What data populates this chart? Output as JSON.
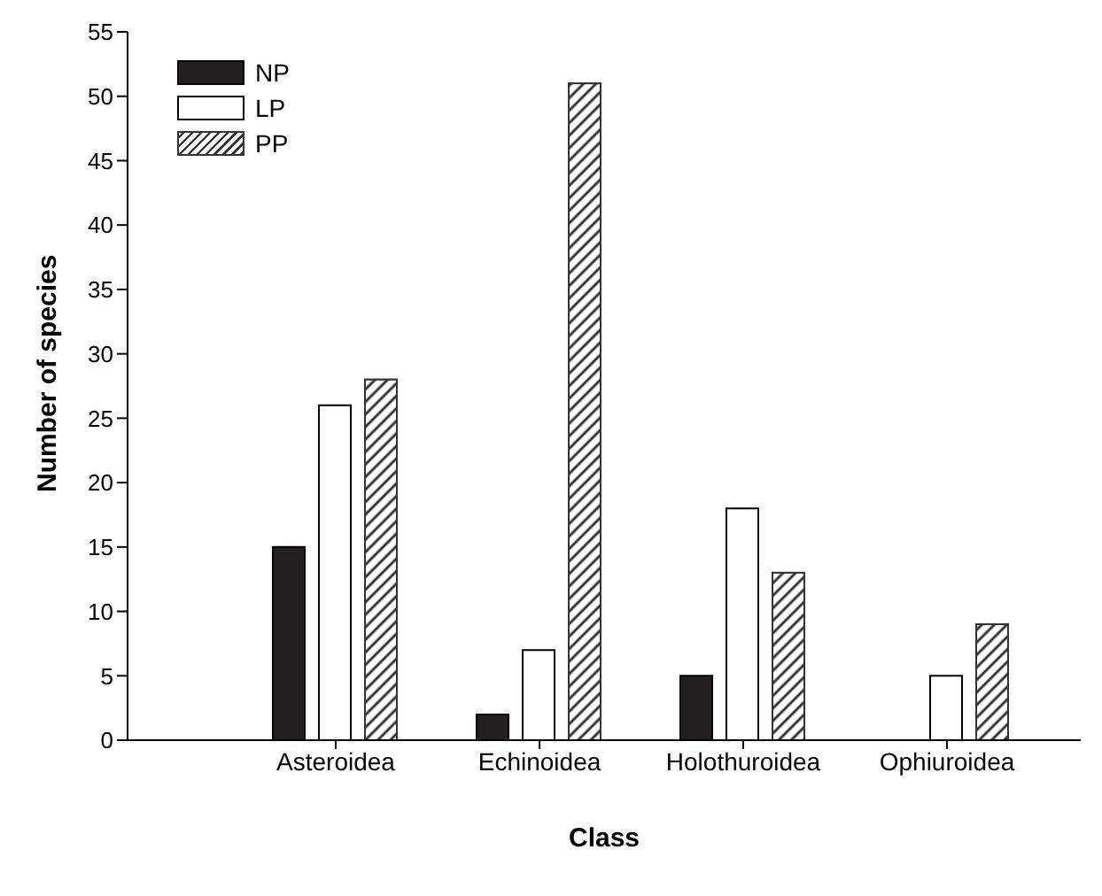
{
  "chart_data": {
    "type": "bar",
    "xlabel": "Class",
    "ylabel": "Number of species",
    "categories": [
      "Asteroidea",
      "Echinoidea",
      "Holothuroidea",
      "Ophiuroidea"
    ],
    "series": [
      {
        "name": "NP",
        "color": "#231f20",
        "values": [
          15,
          2,
          5,
          null
        ]
      },
      {
        "name": "LP",
        "color": "#ffffff",
        "values": [
          26,
          7,
          18,
          5
        ]
      },
      {
        "name": "PP",
        "color": "#333333",
        "values": [
          28,
          51,
          13,
          9
        ]
      }
    ],
    "ylim": [
      0,
      55
    ],
    "yticks": [
      0,
      5,
      10,
      15,
      20,
      25,
      30,
      35,
      40,
      45,
      50,
      55
    ],
    "grid": false,
    "legend": "top left"
  }
}
